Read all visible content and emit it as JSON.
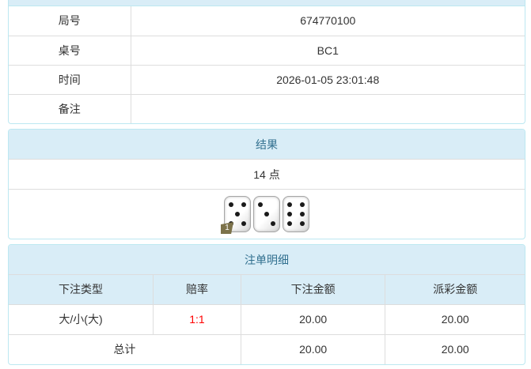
{
  "colors": {
    "heading_bg": "#d9edf7",
    "heading_text": "#31708f",
    "panel_border": "#bce8f1",
    "row_border": "#dddddd",
    "odds_text": "#ff0000",
    "badge_bg": "#7c724a"
  },
  "game_info": {
    "rows": [
      {
        "label": "局号",
        "value": "674770100"
      },
      {
        "label": "桌号",
        "value": "BC1"
      },
      {
        "label": "时间",
        "value": "2026-01-05 23:01:48"
      },
      {
        "label": "备注",
        "value": ""
      }
    ]
  },
  "result": {
    "heading": "结果",
    "points": "14 点",
    "dice": [
      {
        "value": 5,
        "badge": "1"
      },
      {
        "value": 3
      },
      {
        "value": 6
      }
    ]
  },
  "bet_details": {
    "heading": "注单明细",
    "columns": [
      "下注类型",
      "赔率",
      "下注金额",
      "派彩金额"
    ],
    "rows": [
      {
        "type": "大/小(大)",
        "odds": "1:1",
        "bet_amount": "20.00",
        "payout_amount": "20.00"
      }
    ],
    "total": {
      "label": "总计",
      "bet_amount": "20.00",
      "payout_amount": "20.00"
    }
  }
}
